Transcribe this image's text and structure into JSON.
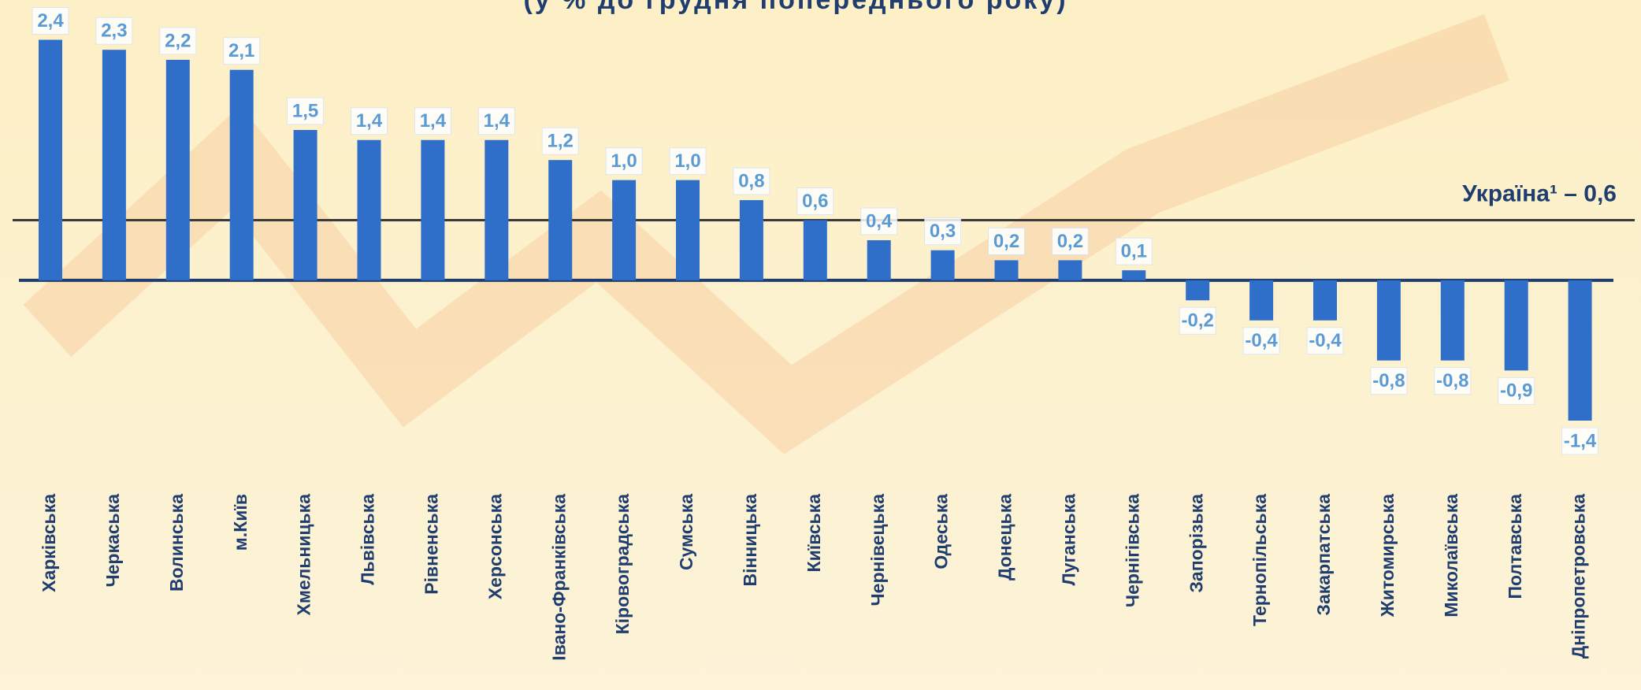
{
  "chart_data": {
    "type": "bar",
    "title": "(у % до грудня попереднього року)",
    "categories": [
      "Харківська",
      "Черкаська",
      "Волинська",
      "м.Київ",
      "Хмельницька",
      "Львівська",
      "Рівненська",
      "Херсонська",
      "Івано-Франківська",
      "Кіровоградська",
      "Сумська",
      "Вінницька",
      "Київська",
      "Чернівецька",
      "Одеська",
      "Донецька",
      "Луганська",
      "Чернігівська",
      "Запорізька",
      "Тернопільська",
      "Закарпатська",
      "Житомирська",
      "Миколаївська",
      "Полтавська",
      "Дніпропетровська"
    ],
    "values": [
      2.4,
      2.3,
      2.2,
      2.1,
      1.5,
      1.4,
      1.4,
      1.4,
      1.2,
      1.0,
      1.0,
      0.8,
      0.6,
      0.4,
      0.3,
      0.2,
      0.2,
      0.1,
      -0.2,
      -0.4,
      -0.4,
      -0.8,
      -0.8,
      -0.9,
      -1.4
    ],
    "value_labels": [
      "2,4",
      "2,3",
      "2,2",
      "2,1",
      "1,5",
      "1,4",
      "1,4",
      "1,4",
      "1,2",
      "1,0",
      "1,0",
      "0,8",
      "0,6",
      "0,4",
      "0,3",
      "0,2",
      "0,2",
      "0,1",
      "-0,2",
      "-0,4",
      "-0,4",
      "-0,8",
      "-0,8",
      "-0,9",
      "-1,4"
    ],
    "color": "#2f6fca",
    "ylim": [
      -1.4,
      2.4
    ],
    "reference_line": {
      "value": 0.6,
      "label": "Україна¹ – 0,6"
    }
  }
}
